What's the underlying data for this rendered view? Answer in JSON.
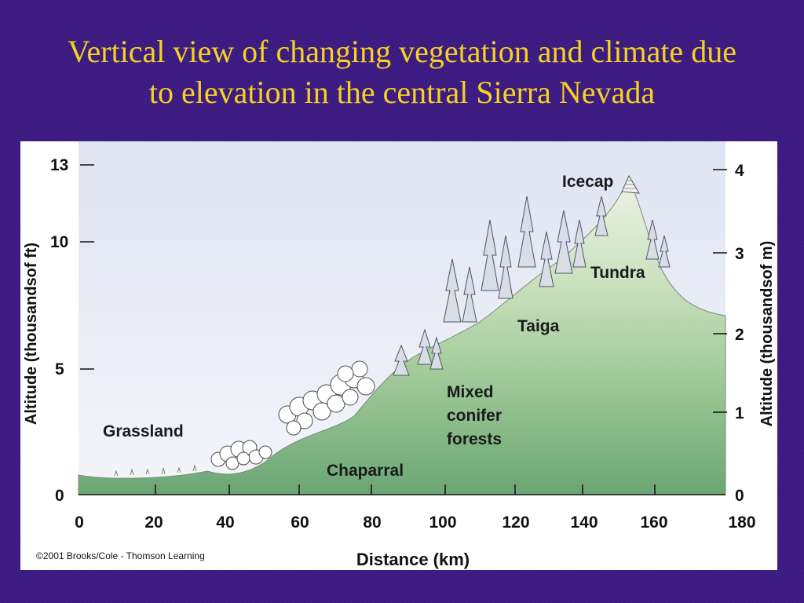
{
  "slide": {
    "title_line1": "Vertical view of changing vegetation and climate due",
    "title_line2": "to elevation in the central Sierra Nevada"
  },
  "figure": {
    "left_axis_title": "Altitude (thousandsof ft)",
    "right_axis_title": "Altitude (thousandsof m)",
    "x_axis_title": "Distance (km)",
    "left_ticks": [
      "0",
      "5",
      "10",
      "13"
    ],
    "right_ticks": [
      "0",
      "1",
      "2",
      "3",
      "4"
    ],
    "x_ticks": [
      "0",
      "20",
      "40",
      "60",
      "80",
      "100",
      "120",
      "140",
      "160",
      "180"
    ],
    "zones": {
      "grassland": "Grassland",
      "chaparral": "Chaparral",
      "mixed_line1": "Mixed",
      "mixed_line2": "conifer",
      "mixed_line3": "forests",
      "taiga": "Taiga",
      "tundra": "Tundra",
      "icecap": "Icecap"
    },
    "credit": "©2001 Brooks/Cole - Thomson Learning",
    "colors": {
      "sky_top": "#dfe4f2",
      "sky_bottom": "#f4f5fb",
      "ground_top": "#e6f0dc",
      "ground_bottom": "#6faa78",
      "slide_bg": "#3b1a80",
      "title": "#f5d21f"
    }
  }
}
